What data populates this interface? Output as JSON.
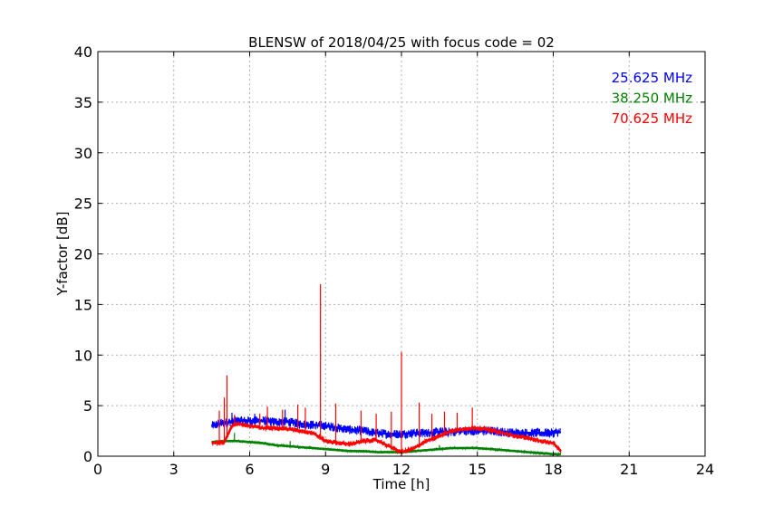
{
  "chart_data": {
    "type": "line",
    "title": "BLENSW of 2018/04/25 with focus code = 02",
    "xlabel": "Time [h]",
    "ylabel": "Y-factor [dB]",
    "xlim": [
      0,
      24
    ],
    "ylim": [
      0,
      40
    ],
    "xticks": [
      0,
      3,
      6,
      9,
      12,
      15,
      18,
      21,
      24
    ],
    "yticks": [
      0,
      5,
      10,
      15,
      20,
      25,
      30,
      35,
      40
    ],
    "grid": true,
    "legend_position": "top-right",
    "series": [
      {
        "name": "25.625 MHz",
        "color": "#0000ff",
        "noise": 0.45,
        "x": [
          4.5,
          5.0,
          5.5,
          6.0,
          6.5,
          7.0,
          7.5,
          8.0,
          8.5,
          9.0,
          9.5,
          10.0,
          10.5,
          11.0,
          11.5,
          12.0,
          12.5,
          13.0,
          13.5,
          14.0,
          14.5,
          15.0,
          15.5,
          16.0,
          16.5,
          17.0,
          17.5,
          18.0,
          18.3
        ],
        "y": [
          3.0,
          3.3,
          3.5,
          3.5,
          3.5,
          3.4,
          3.4,
          3.2,
          3.1,
          3.0,
          2.8,
          2.6,
          2.5,
          2.3,
          2.2,
          2.2,
          2.3,
          2.3,
          2.4,
          2.4,
          2.5,
          2.5,
          2.5,
          2.4,
          2.3,
          2.3,
          2.3,
          2.3,
          2.4
        ],
        "spikes": [
          {
            "x": 7.4,
            "y": 4.6
          },
          {
            "x": 6.2,
            "y": 4.2
          },
          {
            "x": 5.3,
            "y": 4.3
          }
        ]
      },
      {
        "name": "38.250 MHz",
        "color": "#008000",
        "noise": 0.1,
        "x": [
          4.5,
          5.0,
          5.5,
          6.0,
          6.5,
          7.0,
          7.5,
          8.0,
          8.5,
          9.0,
          9.5,
          10.0,
          10.5,
          11.0,
          11.5,
          12.0,
          12.5,
          13.0,
          13.5,
          14.0,
          14.5,
          15.0,
          15.5,
          16.0,
          16.5,
          17.0,
          17.5,
          18.0,
          18.3
        ],
        "y": [
          1.4,
          1.5,
          1.5,
          1.4,
          1.3,
          1.1,
          1.0,
          0.9,
          0.8,
          0.7,
          0.6,
          0.5,
          0.5,
          0.4,
          0.4,
          0.4,
          0.5,
          0.6,
          0.7,
          0.8,
          0.8,
          0.8,
          0.7,
          0.6,
          0.5,
          0.4,
          0.3,
          0.2,
          0.2
        ],
        "spikes": [
          {
            "x": 5.4,
            "y": 2.3
          },
          {
            "x": 7.6,
            "y": 1.5
          },
          {
            "x": 13.5,
            "y": 1.1
          }
        ]
      },
      {
        "name": "70.625 MHz",
        "color": "#ff0000",
        "noise": 0.25,
        "x": [
          4.5,
          5.0,
          5.3,
          5.6,
          6.0,
          6.5,
          7.0,
          7.5,
          8.0,
          8.5,
          9.0,
          9.5,
          10.0,
          10.5,
          11.0,
          11.5,
          12.0,
          12.5,
          13.0,
          13.5,
          14.0,
          14.5,
          15.0,
          15.5,
          16.0,
          16.5,
          17.0,
          17.5,
          18.0,
          18.3
        ],
        "y": [
          1.3,
          1.4,
          3.0,
          3.2,
          3.0,
          2.8,
          2.8,
          2.7,
          2.5,
          2.3,
          1.5,
          1.3,
          1.2,
          1.5,
          1.6,
          1.0,
          0.4,
          0.8,
          1.5,
          2.0,
          2.5,
          2.7,
          2.8,
          2.6,
          2.3,
          2.0,
          1.8,
          1.5,
          1.3,
          0.5
        ],
        "spikes": [
          {
            "x": 4.8,
            "y": 4.5
          },
          {
            "x": 5.0,
            "y": 5.8
          },
          {
            "x": 5.1,
            "y": 8.0
          },
          {
            "x": 5.4,
            "y": 4.1
          },
          {
            "x": 6.4,
            "y": 4.2
          },
          {
            "x": 6.7,
            "y": 4.9
          },
          {
            "x": 7.3,
            "y": 4.6
          },
          {
            "x": 7.9,
            "y": 5.1
          },
          {
            "x": 8.2,
            "y": 4.8
          },
          {
            "x": 8.8,
            "y": 17.0
          },
          {
            "x": 9.4,
            "y": 5.2
          },
          {
            "x": 10.4,
            "y": 4.5
          },
          {
            "x": 11.0,
            "y": 4.2
          },
          {
            "x": 11.6,
            "y": 4.4
          },
          {
            "x": 12.0,
            "y": 10.3
          },
          {
            "x": 12.7,
            "y": 5.3
          },
          {
            "x": 13.2,
            "y": 4.2
          },
          {
            "x": 13.7,
            "y": 4.4
          },
          {
            "x": 14.2,
            "y": 4.3
          },
          {
            "x": 14.8,
            "y": 4.8
          }
        ]
      }
    ]
  }
}
